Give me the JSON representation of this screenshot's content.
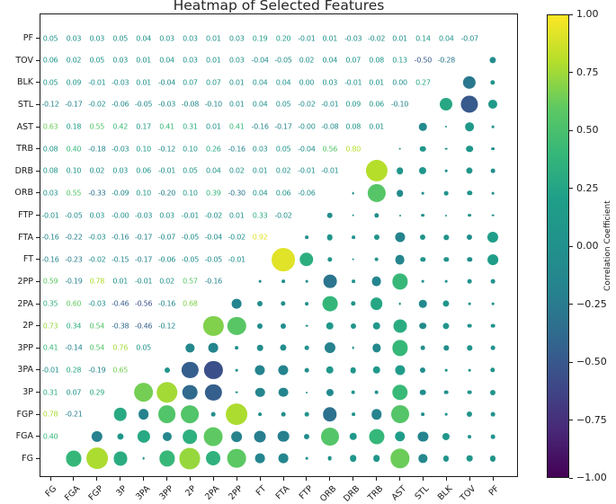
{
  "title": "Heatmap of Selected Features",
  "colorbar": {
    "label": "Correlation Coefficient",
    "tick_labels": [
      "1.00",
      "0.75",
      "0.50",
      "0.25",
      "0.00",
      "−0.25",
      "−0.50",
      "−0.75",
      "−1.00"
    ]
  },
  "chart_data": {
    "type": "heatmap",
    "subtype": "correlation-matrix-text-lower-bubbles-upper",
    "title": "Heatmap of Selected Features",
    "x_categories": [
      "FG",
      "FGA",
      "FGP",
      "3P",
      "3PA",
      "3PP",
      "2P",
      "2PA",
      "2PP",
      "FT",
      "FTA",
      "FTP",
      "ORB",
      "DRB",
      "TRB",
      "AST",
      "STL",
      "BLK",
      "TOV",
      "PF"
    ],
    "y_categories_top_to_bottom": [
      "PF",
      "TOV",
      "BLK",
      "STL",
      "AST",
      "TRB",
      "DRB",
      "ORB",
      "FTP",
      "FTA",
      "FT",
      "2PP",
      "2PA",
      "2P",
      "3PP",
      "3PA",
      "3P",
      "FGP",
      "FGA",
      "FG"
    ],
    "colormap": "viridis",
    "value_range": [
      -1,
      1
    ],
    "colorbar_label": "Correlation Coefficient",
    "colorbar_ticks": [
      1.0,
      0.75,
      0.5,
      0.25,
      0.0,
      -0.25,
      -0.5,
      -0.75,
      -1.0
    ],
    "legend_position": "right",
    "grid": false,
    "correlations_lower_triangle": {
      "FG": [],
      "FGA": [
        "0.40"
      ],
      "FGP": [
        "0.78",
        "-0.21"
      ],
      "3P": [
        "0.31",
        "0.07",
        "0.29"
      ],
      "3PA": [
        "-0.01",
        "0.28",
        "-0.19",
        "0.65"
      ],
      "3PP": [
        "0.41",
        "-0.14",
        "0.54",
        "0.76",
        "0.05"
      ],
      "2P": [
        "0.73",
        "0.34",
        "0.54",
        "-0.38",
        "-0.46",
        "-0.12"
      ],
      "2PA": [
        "0.35",
        "0.60",
        "-0.03",
        "-0.46",
        "-0.56",
        "-0.16",
        "0.68"
      ],
      "2PP": [
        "0.59",
        "-0.19",
        "0.78",
        "0.01",
        "-0.01",
        "0.02",
        "0.57",
        "-0.16"
      ],
      "FT": [
        "-0.16",
        "-0.23",
        "-0.02",
        "-0.15",
        "-0.17",
        "-0.06",
        "-0.05",
        "-0.05",
        "-0.01"
      ],
      "FTA": [
        "-0.16",
        "-0.22",
        "-0.03",
        "-0.16",
        "-0.17",
        "-0.07",
        "-0.05",
        "-0.04",
        "-0.02",
        "0.92"
      ],
      "FTP": [
        "-0.01",
        "-0.05",
        "0.03",
        "-0.00",
        "-0.03",
        "0.03",
        "-0.01",
        "-0.02",
        "0.01",
        "0.33",
        "-0.02"
      ],
      "ORB": [
        "0.03",
        "0.55",
        "-0.33",
        "-0.09",
        "0.10",
        "-0.20",
        "0.10",
        "0.39",
        "-0.30",
        "0.04",
        "0.06",
        "-0.06"
      ],
      "DRB": [
        "0.08",
        "0.10",
        "0.02",
        "0.03",
        "0.06",
        "-0.01",
        "0.05",
        "0.04",
        "0.02",
        "0.01",
        "0.02",
        "-0.01",
        "-0.01"
      ],
      "TRB": [
        "0.08",
        "0.40",
        "-0.18",
        "-0.03",
        "0.10",
        "-0.12",
        "0.10",
        "0.26",
        "-0.16",
        "0.03",
        "0.05",
        "-0.04",
        "0.56",
        "0.80"
      ],
      "AST": [
        "0.63",
        "0.18",
        "0.55",
        "0.42",
        "0.17",
        "0.41",
        "0.31",
        "0.01",
        "0.41",
        "-0.16",
        "-0.17",
        "-0.00",
        "-0.08",
        "0.08",
        "0.01"
      ],
      "STL": [
        "-0.12",
        "-0.17",
        "-0.02",
        "-0.06",
        "-0.05",
        "-0.03",
        "-0.08",
        "-0.10",
        "0.01",
        "0.04",
        "0.05",
        "-0.02",
        "-0.01",
        "0.09",
        "0.06",
        "-0.10"
      ],
      "BLK": [
        "0.05",
        "0.09",
        "-0.01",
        "-0.03",
        "0.01",
        "-0.04",
        "0.07",
        "0.07",
        "0.01",
        "0.04",
        "0.04",
        "0.00",
        "0.03",
        "-0.01",
        "0.01",
        "0.00",
        "0.27"
      ],
      "TOV": [
        "0.06",
        "0.02",
        "0.05",
        "0.03",
        "0.01",
        "0.04",
        "0.03",
        "0.01",
        "0.03",
        "-0.04",
        "-0.05",
        "0.02",
        "0.04",
        "0.07",
        "0.08",
        "0.13",
        "-0.50",
        "-0.28"
      ],
      "PF": [
        "0.05",
        "0.03",
        "0.03",
        "0.05",
        "0.04",
        "0.03",
        "0.03",
        "0.01",
        "0.03",
        "0.19",
        "0.20",
        "-0.01",
        "0.01",
        "-0.03",
        "-0.02",
        "0.01",
        "0.14",
        "0.04",
        "-0.07"
      ]
    }
  }
}
